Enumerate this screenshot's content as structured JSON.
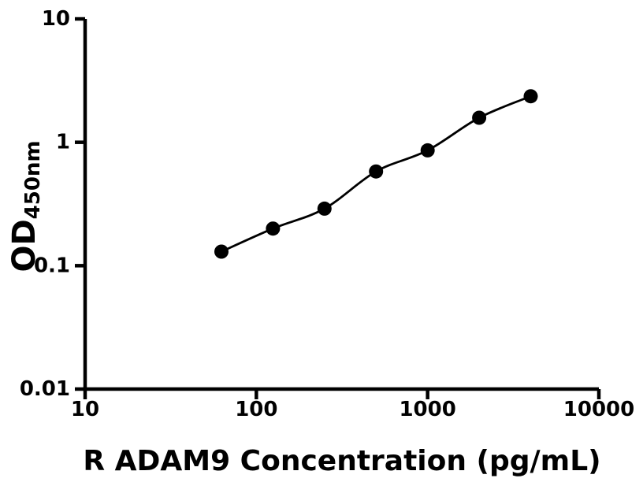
{
  "figure": {
    "background": "#ffffff",
    "foreground": "#000000"
  },
  "chart_data": {
    "type": "line",
    "title": "",
    "xlabel": "R ADAM9 Concentration (pg/mL)",
    "ylabel": "OD",
    "ylabel_subscript": "450nm",
    "x_scale": "log",
    "y_scale": "log",
    "xlim": [
      10,
      10000
    ],
    "ylim": [
      0.01,
      10
    ],
    "x_ticks": [
      10,
      100,
      1000,
      10000
    ],
    "x_tick_labels": [
      "10",
      "100",
      "1000",
      "10000"
    ],
    "y_ticks": [
      0.01,
      0.1,
      1,
      10
    ],
    "y_tick_labels": [
      "0.01",
      "0.1",
      "1",
      "10"
    ],
    "grid": false,
    "legend": "none",
    "series": [
      {
        "marker": "filled-circle",
        "color": "#000000",
        "x": [
          62.5,
          125,
          250,
          500,
          1000,
          2000,
          4000
        ],
        "y": [
          0.13,
          0.2,
          0.29,
          0.58,
          0.86,
          1.58,
          2.36
        ]
      }
    ]
  }
}
